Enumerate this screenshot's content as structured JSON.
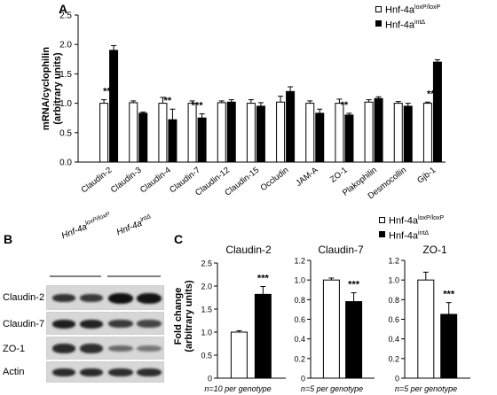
{
  "panels": {
    "A": "A",
    "B": "B",
    "C": "C"
  },
  "legend": {
    "control_base": "Hnf-4a",
    "control_sup": "loxP/loxP",
    "mutant_base": "Hnf-4a",
    "mutant_sup": "intΔ",
    "control_color": "#ffffff",
    "mutant_color": "#000000"
  },
  "panel_a_chart": {
    "type": "bar",
    "ylabel": "mRNA/cyclophilin (arbitrary units)",
    "ylim": [
      0,
      2.5
    ],
    "yticks": [
      "0.0",
      "0.5",
      "1.0",
      "1.5",
      "2.0",
      "2.5"
    ],
    "categories": [
      "Claudin-2",
      "Claudin-3",
      "Claudin-4",
      "Claudin-7",
      "Claudin-12",
      "Claudin-15",
      "Occludin",
      "JAM-A",
      "ZO-1",
      "Plakophilin",
      "Desmocollin",
      "Gjb-1"
    ],
    "series": [
      {
        "name": "Hnf-4aloxP/loxP",
        "values": [
          1.0,
          1.01,
          1.0,
          1.0,
          1.01,
          1.0,
          1.02,
          1.0,
          1.0,
          1.02,
          1.0,
          1.0
        ],
        "errors": [
          0.06,
          0.03,
          0.1,
          0.04,
          0.03,
          0.06,
          0.1,
          0.04,
          0.07,
          0.04,
          0.03,
          0.02
        ]
      },
      {
        "name": "Hnf-4aintΔ",
        "values": [
          1.9,
          0.83,
          0.72,
          0.75,
          1.02,
          0.95,
          1.2,
          0.83,
          0.8,
          1.08,
          0.95,
          1.7
        ],
        "errors": [
          0.08,
          0.02,
          0.18,
          0.07,
          0.04,
          0.06,
          0.08,
          0.07,
          0.03,
          0.03,
          0.05,
          0.04
        ]
      }
    ],
    "significance": [
      "***",
      "",
      "**",
      "***",
      "",
      "",
      "",
      "",
      "**",
      "",
      "",
      "***"
    ]
  },
  "panel_b": {
    "genotype_control_base": "Hnf-4a",
    "genotype_control_sup": "loxP/loxP",
    "genotype_mutant_base": "Hnf-4a",
    "genotype_mutant_sup": "intΔ",
    "rows": [
      "Claudin-2",
      "Claudin-7",
      "ZO-1",
      "Actin"
    ]
  },
  "panel_c_chart": [
    {
      "type": "bar",
      "title": "Claudin-2",
      "ylim": [
        0,
        2.5
      ],
      "yticks": [
        "0",
        "0.5",
        "1.0",
        "1.5",
        "2.0",
        "2.5"
      ],
      "values": [
        1.0,
        1.82
      ],
      "errors": [
        0.03,
        0.17
      ],
      "significance": "***",
      "note": "n=10 per genotype"
    },
    {
      "type": "bar",
      "title": "Claudin-7",
      "ylim": [
        0,
        1.2
      ],
      "yticks": [
        "0",
        "0.2",
        "0.4",
        "0.6",
        "0.8",
        "1.0",
        "1.2"
      ],
      "values": [
        1.0,
        0.78
      ],
      "errors": [
        0.02,
        0.09
      ],
      "significance": "***",
      "note": "n=5 per genotype"
    },
    {
      "type": "bar",
      "title": "ZO-1",
      "ylim": [
        0,
        1.2
      ],
      "yticks": [
        "0",
        "0.2",
        "0.4",
        "0.6",
        "0.8",
        "1.0",
        "1.2"
      ],
      "values": [
        1.0,
        0.65
      ],
      "errors": [
        0.08,
        0.12
      ],
      "significance": "***",
      "note": "n=5 per genotype"
    }
  ],
  "panel_c_ylabel": "Fold change (arbitrary units)"
}
